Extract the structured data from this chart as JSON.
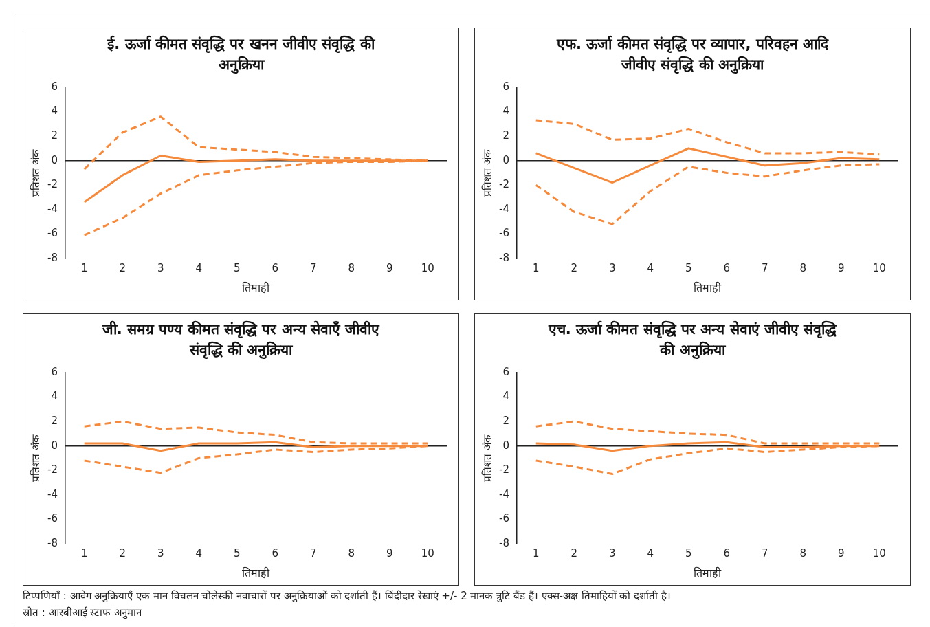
{
  "chart_data": [
    {
      "type": "line",
      "ref_lines": [
        {
          "axis": "y",
          "value": 0,
          "color": "#222222"
        }
      ],
      "title": "ई. ऊर्जा कीमत संवृद्धि पर खनन जीवीए संवृद्धि की अनुक्रिया",
      "xlabel": "तिमाही",
      "ylabel": "प्रतिशत अंक",
      "categories": [
        "1",
        "2",
        "3",
        "4",
        "5",
        "6",
        "7",
        "8",
        "9",
        "10"
      ],
      "ylim": [
        -8,
        6
      ],
      "yticks": [
        -8,
        -6,
        -4,
        -2,
        0,
        2,
        4,
        6
      ],
      "grid": false,
      "legend": false,
      "marker": "none",
      "series": [
        {
          "color": "#f58a3c",
          "line_style": "solid",
          "values": [
            -3.4,
            -1.2,
            0.4,
            -0.1,
            0,
            0.1,
            0,
            0,
            0,
            0
          ]
        },
        {
          "color": "#f58a3c",
          "line_style": "dashed",
          "values": [
            -0.7,
            2.3,
            3.6,
            1.1,
            0.9,
            0.7,
            0.3,
            0.2,
            0.1,
            0
          ]
        },
        {
          "color": "#f58a3c",
          "line_style": "dashed",
          "values": [
            -6.1,
            -4.7,
            -2.7,
            -1.2,
            -0.8,
            -0.5,
            -0.2,
            -0.1,
            -0.1,
            0
          ]
        }
      ]
    },
    {
      "type": "line",
      "ref_lines": [
        {
          "axis": "y",
          "value": 0,
          "color": "#222222"
        }
      ],
      "title": "एफ. ऊर्जा कीमत संवृद्धि पर व्यापार, परिवहन आदि जीवीए संवृद्धि की अनुक्रिया",
      "xlabel": "तिमाही",
      "ylabel": "प्रतिशत अंक",
      "categories": [
        "1",
        "2",
        "3",
        "4",
        "5",
        "6",
        "7",
        "8",
        "9",
        "10"
      ],
      "ylim": [
        -8,
        6
      ],
      "yticks": [
        -8,
        -6,
        -4,
        -2,
        0,
        2,
        4,
        6
      ],
      "grid": false,
      "legend": false,
      "marker": "none",
      "series": [
        {
          "color": "#f58a3c",
          "line_style": "solid",
          "values": [
            0.6,
            -0.6,
            -1.8,
            -0.4,
            1.0,
            0.3,
            -0.4,
            -0.2,
            0.2,
            0.1
          ]
        },
        {
          "color": "#f58a3c",
          "line_style": "dashed",
          "values": [
            3.3,
            3.0,
            1.7,
            1.8,
            2.6,
            1.5,
            0.6,
            0.6,
            0.7,
            0.5
          ]
        },
        {
          "color": "#f58a3c",
          "line_style": "dashed",
          "values": [
            -2.0,
            -4.2,
            -5.2,
            -2.5,
            -0.5,
            -1.0,
            -1.3,
            -0.8,
            -0.4,
            -0.3
          ]
        }
      ]
    },
    {
      "type": "line",
      "ref_lines": [
        {
          "axis": "y",
          "value": 0,
          "color": "#222222"
        }
      ],
      "title": "जी. समग्र पण्य कीमत संवृद्धि पर अन्य सेवाएँ जीवीए संवृद्धि की अनुक्रिया",
      "xlabel": "तिमाही",
      "ylabel": "प्रतिशत अंक",
      "categories": [
        "1",
        "2",
        "3",
        "4",
        "5",
        "6",
        "7",
        "8",
        "9",
        "10"
      ],
      "ylim": [
        -8,
        6
      ],
      "yticks": [
        -8,
        -6,
        -4,
        -2,
        0,
        2,
        4,
        6
      ],
      "grid": false,
      "legend": false,
      "marker": "none",
      "series": [
        {
          "color": "#f58a3c",
          "line_style": "solid",
          "values": [
            0.2,
            0.2,
            -0.4,
            0.2,
            0.2,
            0.3,
            -0.1,
            0,
            0,
            0
          ]
        },
        {
          "color": "#f58a3c",
          "line_style": "dashed",
          "values": [
            1.6,
            2.0,
            1.4,
            1.5,
            1.1,
            0.9,
            0.3,
            0.2,
            0.2,
            0.2
          ]
        },
        {
          "color": "#f58a3c",
          "line_style": "dashed",
          "values": [
            -1.2,
            -1.7,
            -2.2,
            -1.0,
            -0.7,
            -0.3,
            -0.5,
            -0.3,
            -0.2,
            0
          ]
        }
      ]
    },
    {
      "type": "line",
      "ref_lines": [
        {
          "axis": "y",
          "value": 0,
          "color": "#222222"
        }
      ],
      "title": "एच. ऊर्जा कीमत संवृद्धि पर अन्य सेवाएं जीवीए संवृद्धि की अनुक्रिया",
      "xlabel": "तिमाही",
      "ylabel": "प्रतिशत अंक",
      "categories": [
        "1",
        "2",
        "3",
        "4",
        "5",
        "6",
        "7",
        "8",
        "9",
        "10"
      ],
      "ylim": [
        -8,
        6
      ],
      "yticks": [
        -8,
        -6,
        -4,
        -2,
        0,
        2,
        4,
        6
      ],
      "grid": false,
      "legend": false,
      "marker": "none",
      "annotations": [
        "टिप्पणियाँ : आवेग अनुक्रियाएँ एक मान  विचलन चोलेस्की नवाचारों पर अनुक्रियाओं को दर्शाती हैं। बिंदीदार रेखाएं +/- 2 मानक त्रुटि बैंड हैं। एक्स-अक्ष तिमाहियों को दर्शाती है।",
        "स्रोत : आरबीआई स्टाफ अनुमान"
      ],
      "series": [
        {
          "color": "#f58a3c",
          "line_style": "solid",
          "values": [
            0.2,
            0.1,
            -0.4,
            0,
            0.2,
            0.3,
            -0.1,
            -0.1,
            0,
            0
          ]
        },
        {
          "color": "#f58a3c",
          "line_style": "dashed",
          "values": [
            1.6,
            2.0,
            1.4,
            1.2,
            1.0,
            0.9,
            0.2,
            0.2,
            0.2,
            0.2
          ]
        },
        {
          "color": "#f58a3c",
          "line_style": "dashed",
          "values": [
            -1.2,
            -1.7,
            -2.3,
            -1.1,
            -0.6,
            -0.2,
            -0.5,
            -0.3,
            -0.1,
            0
          ]
        }
      ]
    }
  ]
}
